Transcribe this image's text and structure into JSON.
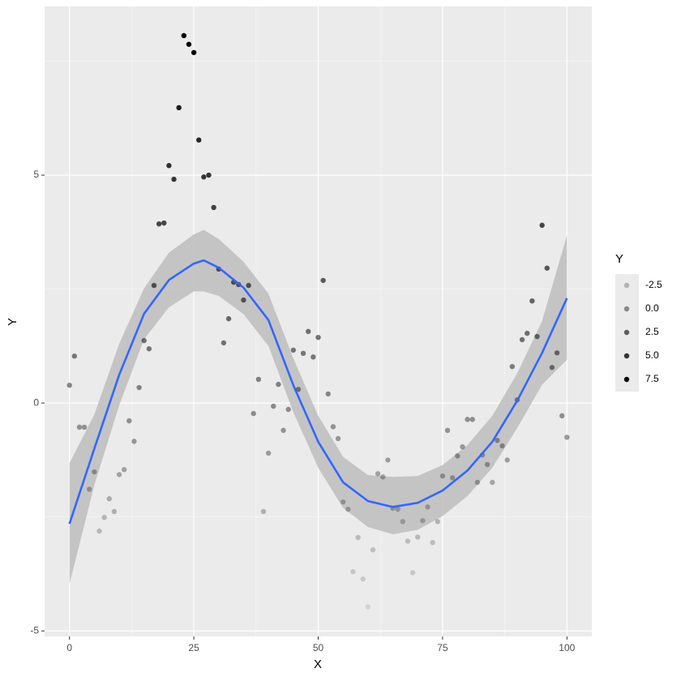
{
  "chart_data": {
    "type": "scatter",
    "x_label": "X",
    "y_label": "Y",
    "xlim": [
      -5,
      105
    ],
    "ylim": [
      -5.12,
      8.7
    ],
    "xticks": [
      0,
      25,
      50,
      75,
      100
    ],
    "yticks": [
      -5,
      0,
      5
    ],
    "x_minor_ticks": [
      12.5,
      37.5,
      62.5,
      87.5
    ],
    "y_minor_ticks": [
      -2.5,
      2.5,
      7.5
    ],
    "grid": true,
    "point_color": "#000000",
    "x": [
      0,
      1,
      2,
      3,
      4,
      5,
      6,
      7,
      8,
      9,
      10,
      11,
      12,
      13,
      14,
      15,
      16,
      17,
      18,
      19,
      20,
      21,
      22,
      23,
      24,
      25,
      26,
      27,
      28,
      29,
      30,
      31,
      32,
      33,
      34,
      35,
      36,
      37,
      38,
      39,
      40,
      41,
      42,
      43,
      44,
      45,
      46,
      47,
      48,
      49,
      50,
      51,
      52,
      53,
      54,
      55,
      56,
      57,
      58,
      59,
      60,
      61,
      62,
      63,
      64,
      65,
      66,
      67,
      68,
      69,
      70,
      71,
      72,
      73,
      74,
      75,
      76,
      77,
      78,
      79,
      80,
      81,
      82,
      83,
      84,
      85,
      86,
      87,
      88,
      89,
      90,
      91,
      92,
      93,
      94,
      95,
      96,
      97,
      98,
      99,
      100
    ],
    "values": [
      0.39,
      1.03,
      -0.53,
      -0.53,
      -1.89,
      -1.51,
      -2.81,
      -2.51,
      -2.1,
      -2.38,
      -1.57,
      -1.46,
      -0.39,
      -0.84,
      0.34,
      1.37,
      1.19,
      2.58,
      3.93,
      3.95,
      5.21,
      4.91,
      6.48,
      8.06,
      7.87,
      7.69,
      5.77,
      4.96,
      5.0,
      4.29,
      2.94,
      1.32,
      1.85,
      2.65,
      2.6,
      2.26,
      2.58,
      -0.23,
      0.52,
      -2.38,
      -1.1,
      -0.07,
      0.41,
      -0.6,
      -0.14,
      1.16,
      0.3,
      1.09,
      1.57,
      1.01,
      1.44,
      2.69,
      0.2,
      -0.52,
      -0.78,
      -2.17,
      -2.33,
      -3.7,
      -2.95,
      -3.86,
      -4.47,
      -3.22,
      -1.55,
      -1.62,
      -1.25,
      -2.31,
      -2.33,
      -2.6,
      -3.03,
      -3.72,
      -2.94,
      -2.58,
      -2.28,
      -3.06,
      -2.6,
      -1.6,
      -0.6,
      -1.64,
      -1.16,
      -0.96,
      -0.36,
      -0.36,
      -1.74,
      -1.14,
      -1.35,
      -1.74,
      -0.82,
      -0.94,
      -1.25,
      0.8,
      0.07,
      1.39,
      1.53,
      2.24,
      1.46,
      3.9,
      2.96,
      0.78,
      1.1,
      -0.28,
      -0.75
    ],
    "smooth": {
      "color": "#3366ff",
      "band_color": "#bdbdbd",
      "x": [
        0,
        5,
        10,
        15,
        20,
        25,
        27,
        30,
        35,
        40,
        45,
        50,
        55,
        60,
        65,
        70,
        75,
        80,
        85,
        90,
        95,
        100
      ],
      "values": [
        -2.65,
        -1.0,
        0.62,
        1.96,
        2.7,
        3.06,
        3.13,
        2.97,
        2.53,
        1.82,
        0.39,
        -0.85,
        -1.74,
        -2.15,
        -2.28,
        -2.19,
        -1.92,
        -1.48,
        -0.85,
        0.05,
        1.1,
        2.3
      ],
      "lower": [
        -3.97,
        -1.8,
        -0.05,
        1.4,
        2.1,
        2.45,
        2.45,
        2.35,
        1.95,
        1.25,
        -0.2,
        -1.42,
        -2.3,
        -2.72,
        -2.88,
        -2.78,
        -2.48,
        -2.04,
        -1.42,
        -0.55,
        0.4,
        0.95
      ],
      "upper": [
        -1.32,
        -0.25,
        1.3,
        2.52,
        3.3,
        3.7,
        3.8,
        3.6,
        3.1,
        2.4,
        0.98,
        -0.28,
        -1.18,
        -1.58,
        -1.62,
        -1.6,
        -1.36,
        -0.92,
        -0.28,
        0.65,
        1.8,
        3.68
      ]
    },
    "legend": {
      "title": "Y",
      "keys": [
        {
          "value": -2.5,
          "label": "-2.5"
        },
        {
          "value": 0,
          "label": "0.0"
        },
        {
          "value": 2.5,
          "label": "2.5"
        },
        {
          "value": 5,
          "label": "5.0"
        },
        {
          "value": 7.5,
          "label": "7.5"
        }
      ]
    }
  }
}
